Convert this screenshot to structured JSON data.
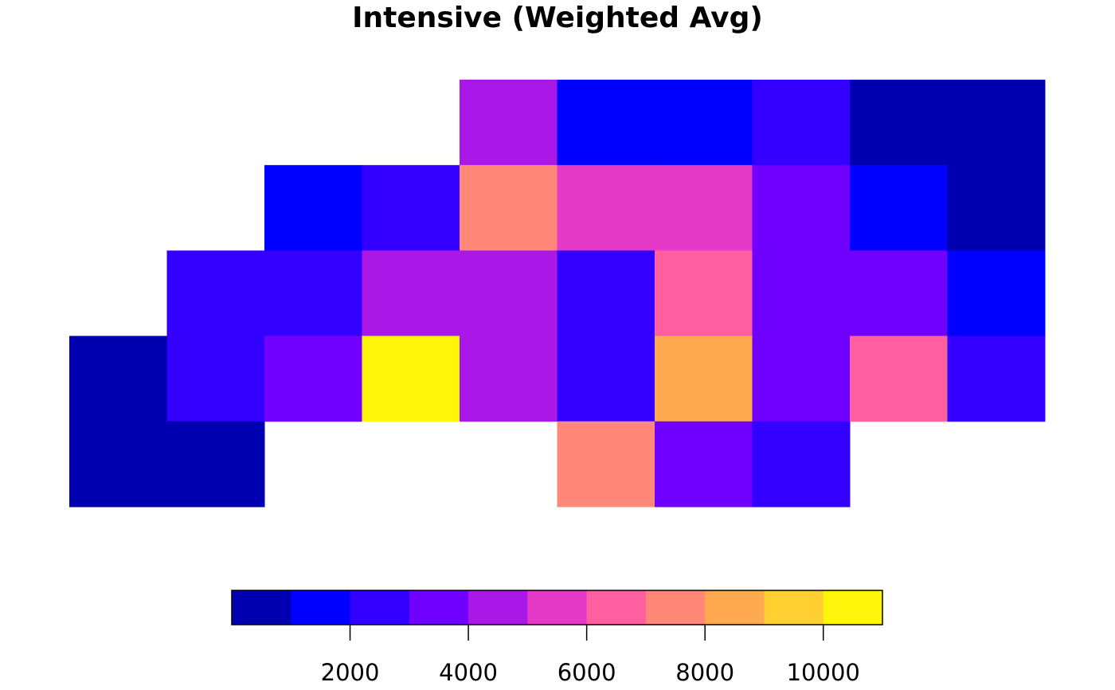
{
  "chart_data": {
    "type": "heatmap",
    "title": "Intensive (Weighted Avg)",
    "xlabel": "",
    "ylabel": "",
    "grid": false,
    "legend_position": "bottom",
    "rows": 5,
    "cols": 10,
    "values": [
      [
        null,
        null,
        null,
        null,
        4500,
        1500,
        1500,
        2500,
        500,
        500
      ],
      [
        null,
        null,
        1500,
        2500,
        7500,
        5500,
        5500,
        3500,
        1500,
        500
      ],
      [
        null,
        2500,
        2500,
        4500,
        4500,
        2500,
        6500,
        3500,
        3500,
        1500
      ],
      [
        500,
        2500,
        3500,
        10500,
        4500,
        2500,
        8500,
        3500,
        6500,
        2500
      ],
      [
        500,
        500,
        null,
        null,
        null,
        7500,
        3500,
        2500,
        null,
        null
      ]
    ],
    "colorbar": {
      "breaks": [
        0,
        1000,
        2000,
        3000,
        4000,
        5000,
        6000,
        7000,
        8000,
        9000,
        10000,
        11000
      ],
      "colors": [
        "#0000B0",
        "#0000FF",
        "#3300FF",
        "#7000FF",
        "#AA18E8",
        "#E53AC8",
        "#FF5FA0",
        "#FF8878",
        "#FFAA50",
        "#FFD030",
        "#FFF50A"
      ],
      "tick_labels": [
        "2000",
        "4000",
        "6000",
        "8000",
        "10000"
      ],
      "tick_values": [
        2000,
        4000,
        6000,
        8000,
        10000
      ]
    }
  }
}
